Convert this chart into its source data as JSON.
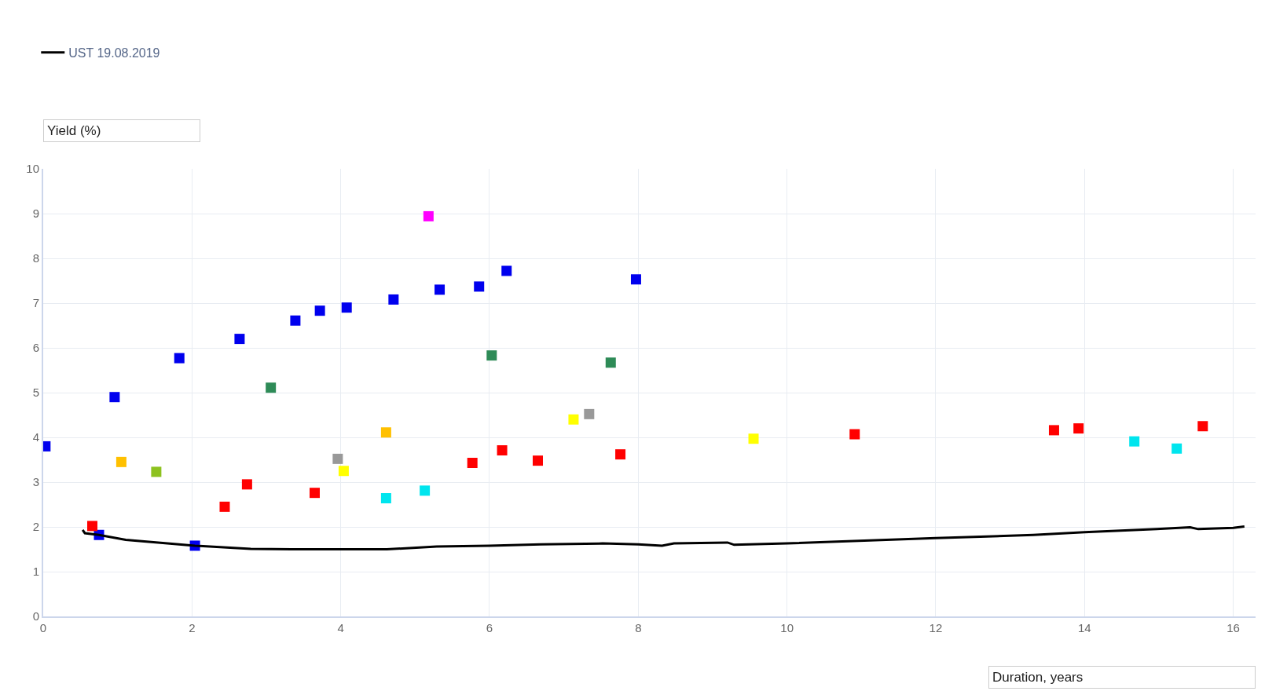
{
  "chart_data": {
    "type": "scatter",
    "xlabel": "Duration, years",
    "ylabel": "Yield (%)",
    "xlim": [
      0,
      16.3
    ],
    "ylim": [
      0,
      10
    ],
    "xticks": [
      0,
      2,
      4,
      6,
      8,
      10,
      12,
      14,
      16
    ],
    "yticks": [
      0,
      1,
      2,
      3,
      4,
      5,
      6,
      7,
      8,
      9,
      10
    ],
    "grid": true,
    "legend": "top left",
    "marker": "square",
    "series": [
      {
        "x": [
          0.03,
          0.75,
          0.96,
          1.83,
          2.04,
          2.64,
          3.39,
          3.72,
          4.08,
          4.71,
          5.33,
          5.86,
          6.23,
          7.97,
          5.18,
          3.06,
          6.03,
          7.63,
          1.05,
          4.61,
          1.52,
          3.96,
          7.34,
          4.04,
          7.13,
          9.55,
          4.61,
          5.13,
          14.67,
          15.24,
          0.66,
          2.44,
          2.74,
          3.65,
          5.77,
          6.17,
          6.65,
          7.76,
          10.91,
          13.59,
          13.92,
          15.59
        ],
        "values": [
          3.8,
          1.82,
          4.9,
          5.77,
          1.58,
          6.2,
          6.61,
          6.83,
          6.9,
          7.08,
          7.3,
          7.37,
          7.72,
          7.53,
          8.94,
          5.11,
          5.83,
          5.67,
          3.45,
          4.11,
          3.23,
          3.52,
          4.52,
          3.25,
          4.4,
          3.97,
          2.64,
          2.81,
          3.91,
          3.75,
          2.02,
          2.45,
          2.95,
          2.76,
          3.43,
          3.71,
          3.48,
          3.62,
          4.07,
          4.16,
          4.2,
          4.25
        ],
        "colors": [
          "#0000ee",
          "#0000ee",
          "#0000ee",
          "#0000ee",
          "#0000ee",
          "#0000ee",
          "#0000ee",
          "#0000ee",
          "#0000ee",
          "#0000ee",
          "#0000ee",
          "#0000ee",
          "#0000ee",
          "#0000ee",
          "#ff00ff",
          "#2e8b57",
          "#2e8b57",
          "#2e8b57",
          "#ffc000",
          "#ffc000",
          "#8dc21f",
          "#999999",
          "#999999",
          "#ffff00",
          "#ffff00",
          "#ffff00",
          "#00e5ee",
          "#00e5ee",
          "#00e5ee",
          "#00e5ee",
          "#ff0000",
          "#ff0000",
          "#ff0000",
          "#ff0000",
          "#ff0000",
          "#ff0000",
          "#ff0000",
          "#ff0000",
          "#ff0000",
          "#ff0000",
          "#ff0000",
          "#ff0000"
        ]
      },
      {
        "type": "line",
        "name": "UST 19.08.2019",
        "color": "#000000",
        "marker": "none",
        "x": [
          0.53,
          0.56,
          0.75,
          1.11,
          1.67,
          2.04,
          2.79,
          3.34,
          4.0,
          4.62,
          5.29,
          6.0,
          6.69,
          7.52,
          8.0,
          8.32,
          8.48,
          9.2,
          9.29,
          10.0,
          12.0,
          13.31,
          14.0,
          14.97,
          15.42,
          15.53,
          16.0,
          16.15
        ],
        "values": [
          1.93,
          1.86,
          1.82,
          1.71,
          1.63,
          1.58,
          1.51,
          1.5,
          1.5,
          1.5,
          1.56,
          1.58,
          1.61,
          1.63,
          1.61,
          1.58,
          1.63,
          1.65,
          1.6,
          1.63,
          1.75,
          1.82,
          1.88,
          1.95,
          1.99,
          1.95,
          1.98,
          2.01
        ]
      }
    ]
  }
}
